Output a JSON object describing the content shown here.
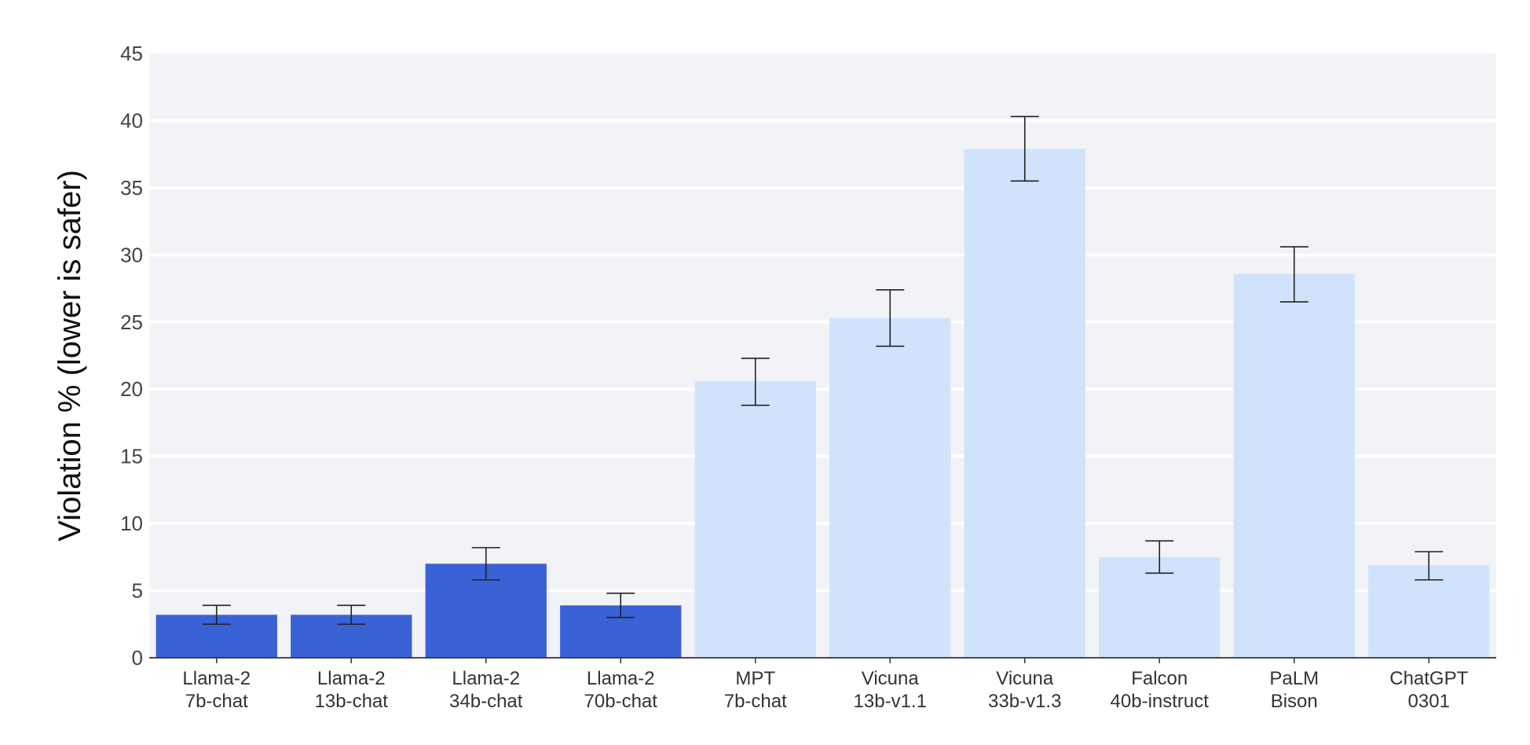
{
  "chart_data": {
    "type": "bar",
    "ylabel": "Violation % (lower is safer)",
    "ylim": [
      0,
      45
    ],
    "yticks": [
      0,
      5,
      10,
      15,
      20,
      25,
      30,
      35,
      40,
      45
    ],
    "grid": true,
    "categories": [
      [
        "Llama-2",
        "7b-chat"
      ],
      [
        "Llama-2",
        "13b-chat"
      ],
      [
        "Llama-2",
        "34b-chat"
      ],
      [
        "Llama-2",
        "70b-chat"
      ],
      [
        "MPT",
        "7b-chat"
      ],
      [
        "Vicuna",
        "13b-v1.1"
      ],
      [
        "Vicuna",
        "33b-v1.3"
      ],
      [
        "Falcon",
        "40b-instruct"
      ],
      [
        "PaLM",
        "Bison"
      ],
      [
        "ChatGPT",
        "0301"
      ]
    ],
    "values": [
      3.2,
      3.2,
      7.0,
      3.9,
      20.6,
      25.3,
      37.9,
      7.5,
      28.6,
      6.9
    ],
    "error_low": [
      2.5,
      2.5,
      5.8,
      3.0,
      18.8,
      23.2,
      35.5,
      6.3,
      26.5,
      5.8
    ],
    "error_high": [
      3.9,
      3.9,
      8.2,
      4.8,
      22.3,
      27.4,
      40.3,
      8.7,
      30.6,
      7.9
    ],
    "colors": {
      "highlight": "#3a62d7",
      "other": "#d1e3fb",
      "plot_bg": "#f2f3f7",
      "grid": "#ffffff",
      "error_bar": "#222222",
      "axis": "#333333"
    },
    "highlight_count": 4
  }
}
